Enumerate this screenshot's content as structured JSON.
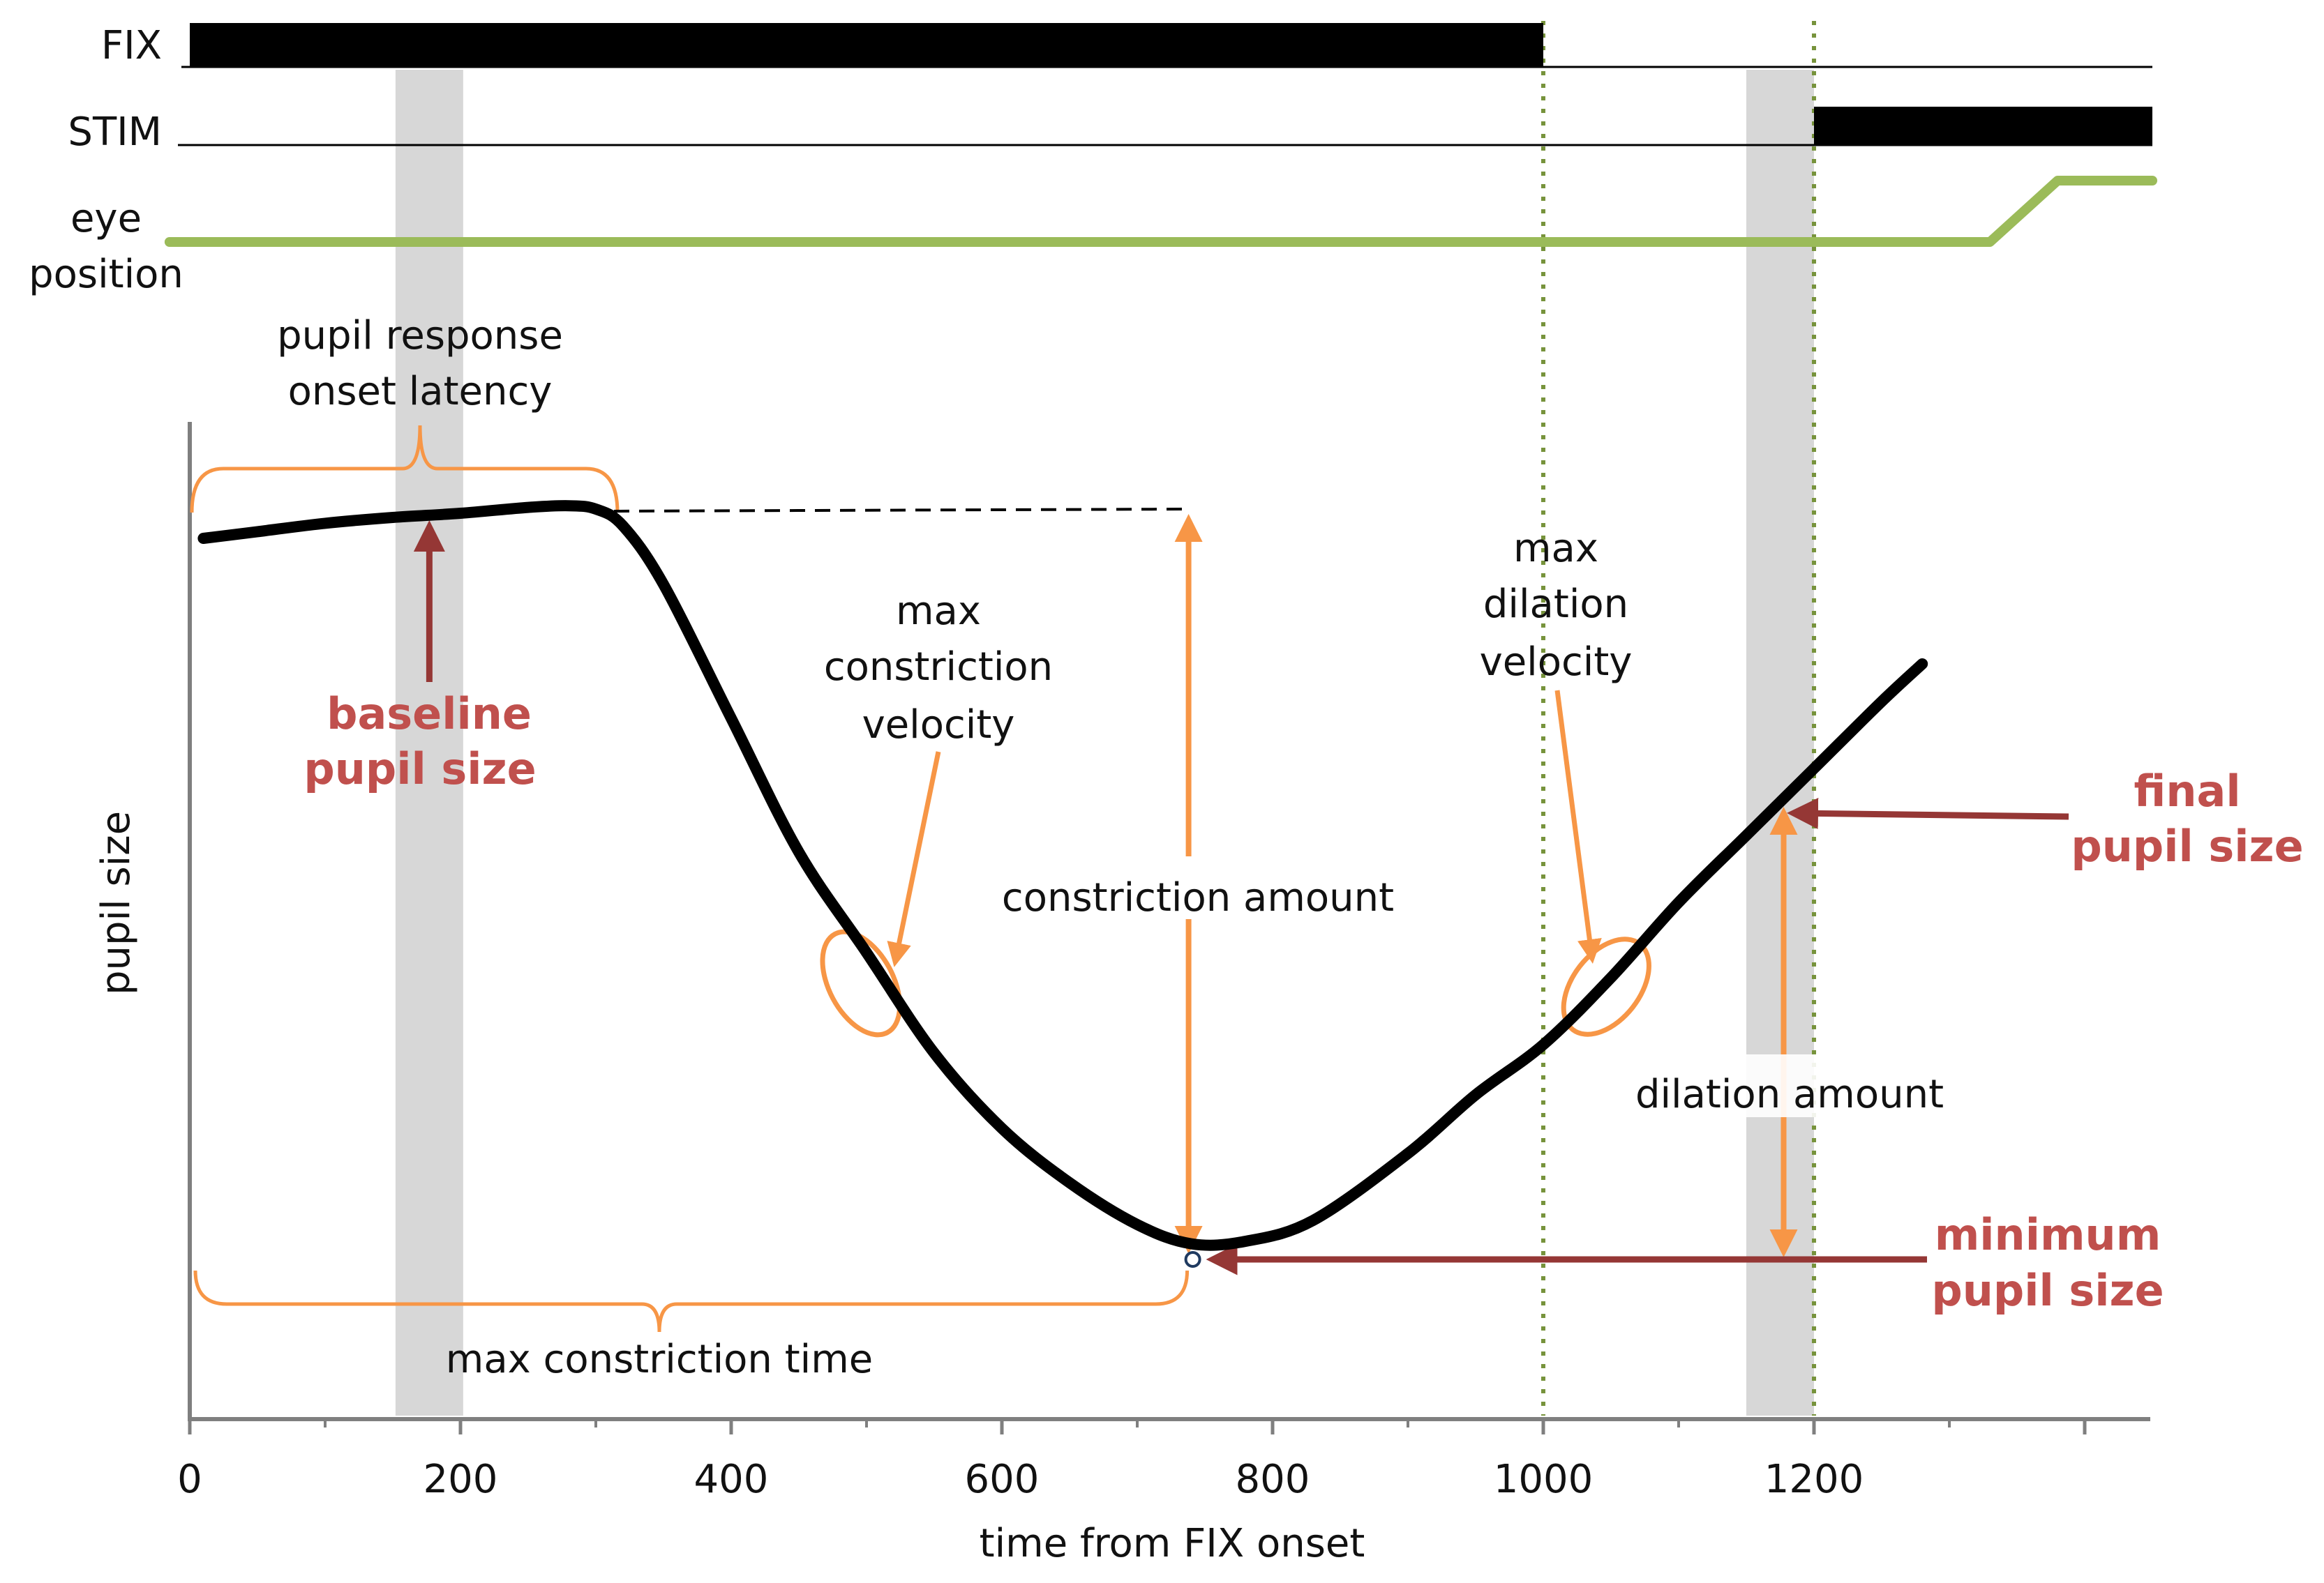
{
  "chart_data": {
    "type": "line",
    "title": "",
    "xlabel": "time from FIX onset",
    "ylabel": "pupil size",
    "xlim": [
      0,
      1450
    ],
    "ylim": [
      0,
      1
    ],
    "x_ticks": [
      0,
      200,
      400,
      600,
      800,
      1000,
      1200
    ],
    "x_tick_labels": [
      "0",
      "200",
      "400",
      "600",
      "800",
      "1000",
      "1200"
    ],
    "grid": false,
    "timeline": {
      "rows": [
        {
          "name": "fix",
          "label": "FIX",
          "on": [
            [
              0,
              1000
            ]
          ]
        },
        {
          "name": "stim",
          "label": "STIM",
          "on": [
            [
              1200,
              1450
            ]
          ]
        },
        {
          "name": "eye",
          "label": [
            "eye",
            "position"
          ],
          "trace": [
            [
              -15,
              0
            ],
            [
              1330,
              0
            ],
            [
              1380,
              1
            ],
            [
              1450,
              1
            ]
          ]
        }
      ]
    },
    "series": [
      {
        "name": "pupil size",
        "x": [
          10,
          50,
          100,
          150,
          200,
          250,
          280,
          300,
          320,
          350,
          400,
          450,
          500,
          550,
          600,
          650,
          700,
          740,
          780,
          830,
          900,
          950,
          1000,
          1050,
          1100,
          1150,
          1200,
          1250,
          1280
        ],
        "y": [
          0.855,
          0.863,
          0.873,
          0.88,
          0.885,
          0.892,
          0.894,
          0.89,
          0.87,
          0.8,
          0.64,
          0.48,
          0.36,
          0.24,
          0.15,
          0.085,
          0.035,
          0.012,
          0.015,
          0.04,
          0.12,
          0.19,
          0.25,
          0.33,
          0.42,
          0.5,
          0.58,
          0.66,
          0.705
        ]
      }
    ],
    "markers": {
      "baseline_x": 177,
      "baseline_level": 0.885,
      "min_x": 740,
      "min_level": 0.012,
      "final_x": 1175,
      "final_level": 0.535,
      "max_constriction_velocity_x": 495,
      "max_dilation_velocity_x": 1045
    },
    "shaded_windows": [
      [
        152,
        202
      ],
      [
        1150,
        1200
      ]
    ],
    "vertical_lines": [
      1000,
      1200
    ],
    "annotations": {
      "pupil_response_onset_latency": [
        "pupil response",
        "onset latency"
      ],
      "baseline_pupil_size": [
        "baseline",
        "pupil size"
      ],
      "max_constriction_velocity": [
        "max",
        "constriction",
        "velocity"
      ],
      "constriction_amount": "constriction amount",
      "max_dilation_velocity": [
        "max",
        "dilation",
        "velocity"
      ],
      "dilation_amount": "dilation amount",
      "final_pupil_size": [
        "final",
        "pupil size"
      ],
      "minimum_pupil_size": [
        "minimum",
        "pupil size"
      ],
      "max_constriction_time": "max constriction time"
    },
    "colors": {
      "curve": "#000000",
      "annotation": "#f79646",
      "highlight_text": "#c0504d",
      "arrow": "#953735",
      "eye_trace": "#9bbb59",
      "dotted_line": "#77933c",
      "window": "#d0d0d0"
    }
  }
}
